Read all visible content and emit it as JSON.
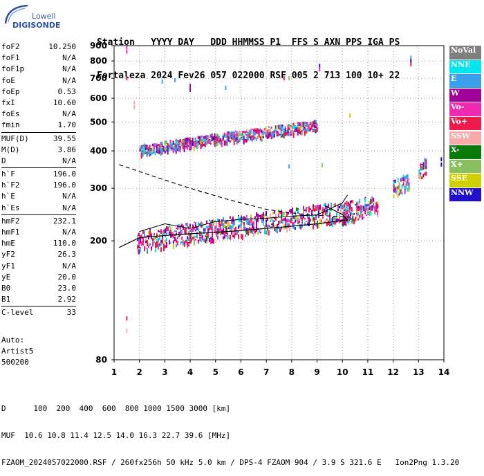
{
  "logo": {
    "line1": "Lowell",
    "line2": "DIGISONDE"
  },
  "header": {
    "labels_line": "Station   YYYY DAY   DDD HHMMSS P1  FFS S AXN PPS IGA PS",
    "values_line": "Fortaleza 2024 Fev26 057 022000 RSF 005 2 713 100 10+ 22"
  },
  "params": [
    {
      "name": "foF2",
      "value": "10.250",
      "sep_after": false
    },
    {
      "name": "foF1",
      "value": "N/A",
      "sep_after": false
    },
    {
      "name": "foF1p",
      "value": "N/A",
      "sep_after": false
    },
    {
      "name": "foE",
      "value": "N/A",
      "sep_after": false
    },
    {
      "name": "foEp",
      "value": "0.53",
      "sep_after": false
    },
    {
      "name": "fxI",
      "value": "10.60",
      "sep_after": false
    },
    {
      "name": "foEs",
      "value": "N/A",
      "sep_after": false
    },
    {
      "name": "fmin",
      "value": "1.70",
      "sep_after": true
    },
    {
      "name": "MUF(D)",
      "value": "39.55",
      "sep_after": false
    },
    {
      "name": "M(D)",
      "value": "3.86",
      "sep_after": false
    },
    {
      "name": "D",
      "value": "N/A",
      "sep_after": true
    },
    {
      "name": "h`F",
      "value": "196.0",
      "sep_after": false
    },
    {
      "name": "h`F2",
      "value": "196.0",
      "sep_after": false
    },
    {
      "name": "h`E",
      "value": "N/A",
      "sep_after": false
    },
    {
      "name": "h`Es",
      "value": "N/A",
      "sep_after": true
    },
    {
      "name": "hmF2",
      "value": "232.1",
      "sep_after": false
    },
    {
      "name": "hmF1",
      "value": "N/A",
      "sep_after": false
    },
    {
      "name": "hmE",
      "value": "110.0",
      "sep_after": false
    },
    {
      "name": "yF2",
      "value": "26.3",
      "sep_after": false
    },
    {
      "name": "yF1",
      "value": "N/A",
      "sep_after": false
    },
    {
      "name": "yE",
      "value": "20.0",
      "sep_after": false
    },
    {
      "name": "B0",
      "value": "23.0",
      "sep_after": false
    },
    {
      "name": "B1",
      "value": "2.92",
      "sep_after": true
    },
    {
      "name": "C-level",
      "value": "33",
      "sep_after": false
    }
  ],
  "auto": {
    "line1": "Auto:",
    "line2": "Artist5",
    "line3": "500200"
  },
  "bottom": {
    "d_line": "D      100  200  400  600  800 1000 1500 3000 [km]",
    "muf_line": "MUF  10.6 10.8 11.4 12.5 14.0 16.3 22.7 39.6 [MHz]",
    "footer_line": "FZAOM_2024057022000.RSF / 260fx256h 50 kHz 5.0 km / DPS-4 FZAOM 904 / 3.9 S 321.6 E   Ion2Png 1.3.20"
  },
  "legend": [
    {
      "label": "NoVal",
      "color": "#7f7f7f"
    },
    {
      "label": "NNE",
      "color": "#00e5ee"
    },
    {
      "label": "E",
      "color": "#3aa0ee"
    },
    {
      "label": "W",
      "color": "#a0009a"
    },
    {
      "label": "Vo-",
      "color": "#ee2ab0"
    },
    {
      "label": "Vo+",
      "color": "#ee1a4a"
    },
    {
      "label": "SSW",
      "color": "#f7a8a8"
    },
    {
      "label": "X-",
      "color": "#0a7a0a"
    },
    {
      "label": "X+",
      "color": "#88c060"
    },
    {
      "label": "SSE",
      "color": "#d0d000"
    },
    {
      "label": "NNW",
      "color": "#2010cc"
    }
  ],
  "chart_data": {
    "type": "scatter",
    "title": "",
    "xlabel": "",
    "ylabel": "",
    "xlim": [
      1,
      14
    ],
    "ylim": [
      80,
      900
    ],
    "y_scale": "log",
    "x_ticks": [
      1,
      2,
      3,
      4,
      5,
      6,
      7,
      8,
      9,
      10,
      11,
      12,
      13,
      14
    ],
    "y_ticks": [
      80,
      200,
      300,
      400,
      500,
      600,
      700,
      800,
      900
    ],
    "grid": true,
    "legend_position": "right",
    "echo_clusters": [
      {
        "desc_color": "mixed",
        "x_start": 1.9,
        "x_end": 10.4,
        "h_start": 200,
        "h_end": 255,
        "thickness": 30
      },
      {
        "desc_color": "mixed",
        "x_start": 10.0,
        "x_end": 11.4,
        "h_start": 250,
        "h_end": 265,
        "thickness": 30
      },
      {
        "desc_color": "mixed",
        "x_start": 2.0,
        "x_end": 9.0,
        "h_start": 405,
        "h_end": 490,
        "thickness": 15
      },
      {
        "desc_color": "mixed",
        "x_start": 12.0,
        "x_end": 12.6,
        "h_start": 300,
        "h_end": 320,
        "thickness": 25
      },
      {
        "desc_color": "mixed",
        "x_start": 13.0,
        "x_end": 13.3,
        "h_start": 340,
        "h_end": 360,
        "thickness": 25
      }
    ],
    "scattered_points": [
      {
        "x": 1.5,
        "h": 890,
        "color": "#ee2ab0"
      },
      {
        "x": 1.5,
        "h": 860,
        "color": "#ee2ab0"
      },
      {
        "x": 1.5,
        "h": 700,
        "color": "#ee1a4a"
      },
      {
        "x": 1.8,
        "h": 580,
        "color": "#f7a8a8"
      },
      {
        "x": 1.8,
        "h": 560,
        "color": "#f7a8a8"
      },
      {
        "x": 1.5,
        "h": 110,
        "color": "#ee1a4a"
      },
      {
        "x": 1.5,
        "h": 100,
        "color": "#f7a8a8"
      },
      {
        "x": 2.9,
        "h": 682,
        "color": "#3aa0ee"
      },
      {
        "x": 3.4,
        "h": 690,
        "color": "#3aa0ee"
      },
      {
        "x": 4.0,
        "h": 660,
        "color": "#a0009a"
      },
      {
        "x": 4.0,
        "h": 640,
        "color": "#a0009a"
      },
      {
        "x": 5.4,
        "h": 650,
        "color": "#3aa0ee"
      },
      {
        "x": 7.7,
        "h": 700,
        "color": "#ee1a4a"
      },
      {
        "x": 7.9,
        "h": 700,
        "color": "#88c060"
      },
      {
        "x": 9.1,
        "h": 770,
        "color": "#2010cc"
      },
      {
        "x": 9.1,
        "h": 750,
        "color": "#ee2ab0"
      },
      {
        "x": 12.7,
        "h": 820,
        "color": "#3aa0ee"
      },
      {
        "x": 12.7,
        "h": 800,
        "color": "#2010cc"
      },
      {
        "x": 12.7,
        "h": 780,
        "color": "#ee1a4a"
      },
      {
        "x": 13.9,
        "h": 375,
        "color": "#2010cc"
      },
      {
        "x": 13.9,
        "h": 360,
        "color": "#2010cc"
      },
      {
        "x": 10.3,
        "h": 525,
        "color": "#d0d000"
      },
      {
        "x": 9.2,
        "h": 358,
        "color": "#88c060"
      },
      {
        "x": 7.9,
        "h": 355,
        "color": "#3aa0ee"
      }
    ],
    "profile_dashed": [
      [
        1.2,
        360
      ],
      [
        2.5,
        330
      ],
      [
        4.0,
        300
      ],
      [
        5.5,
        275
      ],
      [
        7.0,
        255
      ],
      [
        8.5,
        245
      ],
      [
        10.3,
        240
      ]
    ],
    "profile_solid": [
      [
        1.2,
        190
      ],
      [
        2.0,
        205
      ],
      [
        3.5,
        210
      ],
      [
        5.5,
        215
      ],
      [
        7.5,
        222
      ],
      [
        9.0,
        228
      ],
      [
        10.2,
        235
      ],
      [
        10.0,
        245
      ],
      [
        9.6,
        255
      ],
      [
        9.3,
        262
      ]
    ],
    "trace_line": [
      [
        2.0,
        215
      ],
      [
        3.0,
        228
      ],
      [
        4.0,
        220
      ],
      [
        5.0,
        232
      ],
      [
        6.0,
        236
      ],
      [
        7.0,
        238
      ],
      [
        8.0,
        242
      ],
      [
        9.0,
        244
      ],
      [
        10.0,
        268
      ],
      [
        10.2,
        285
      ]
    ]
  }
}
